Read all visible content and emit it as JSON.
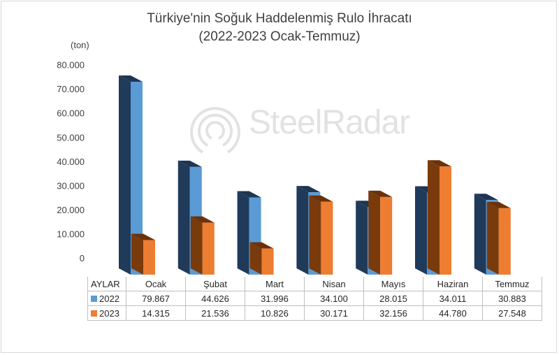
{
  "chart_data": {
    "type": "bar",
    "title": "Türkiye'nin Soğuk Haddelenmiş Rulo İhracatı",
    "subtitle": "(2022-2023 Ocak-Temmuz)",
    "ylabel": "(ton)",
    "xlabel": "AYLAR",
    "ylim": [
      0,
      80000
    ],
    "yticks": [
      "0",
      "10.000",
      "20.000",
      "30.000",
      "40.000",
      "50.000",
      "60.000",
      "70.000",
      "80.000"
    ],
    "ytick_values": [
      0,
      10000,
      20000,
      30000,
      40000,
      50000,
      60000,
      70000,
      80000
    ],
    "categories": [
      "Ocak",
      "Şubat",
      "Mart",
      "Nisan",
      "Mayıs",
      "Haziran",
      "Temmuz"
    ],
    "series": [
      {
        "name": "2022",
        "color": "#5b9bd5",
        "values": [
          79867,
          44626,
          31996,
          34100,
          28015,
          34011,
          30883
        ],
        "labels": [
          "79.867",
          "44.626",
          "31.996",
          "34.100",
          "28.015",
          "34.011",
          "30.883"
        ]
      },
      {
        "name": "2023",
        "color": "#ed7d31",
        "values": [
          14315,
          21536,
          10826,
          30171,
          32156,
          44780,
          27548
        ],
        "labels": [
          "14.315",
          "21.536",
          "10.826",
          "30.171",
          "32.156",
          "44.780",
          "27.548"
        ]
      }
    ],
    "grid": false,
    "legend": "data-table"
  },
  "watermark": {
    "text": "SteelRadar"
  }
}
